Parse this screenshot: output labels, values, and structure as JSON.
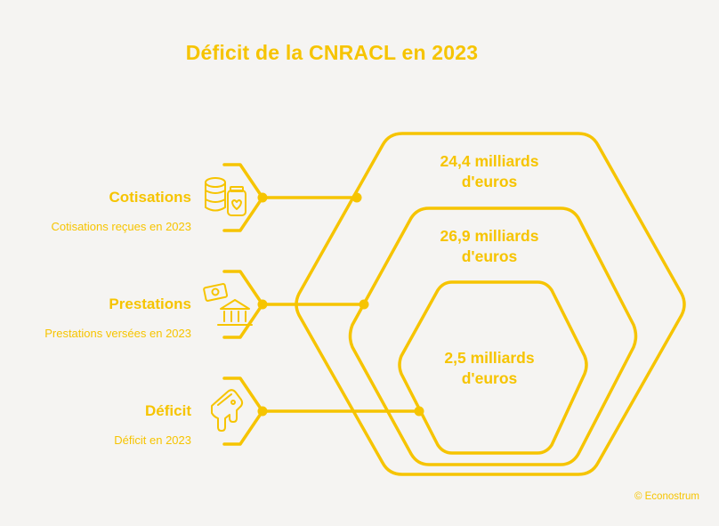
{
  "title": "Déficit de la CNRACL en 2023",
  "accent_color": "#f6c400",
  "background_color": "#f5f4f2",
  "items": [
    {
      "label": "Cotisations",
      "sublabel": "Cotisations reçues en 2023",
      "icon": "coins-money-jar-icon"
    },
    {
      "label": "Prestations",
      "sublabel": "Prestations versées en 2023",
      "icon": "cash-bank-icon"
    },
    {
      "label": "Déficit",
      "sublabel": "Déficit en 2023",
      "icon": "melting-card-icon"
    }
  ],
  "hexagons": [
    {
      "value_line1": "24,4 milliards",
      "value_line2": "d'euros"
    },
    {
      "value_line1": "26,9 milliards",
      "value_line2": "d'euros"
    },
    {
      "value_line1": "2,5 milliards",
      "value_line2": "d'euros"
    }
  ],
  "copyright": "© Econostrum"
}
